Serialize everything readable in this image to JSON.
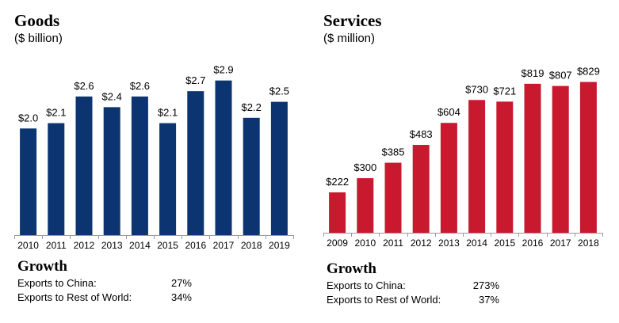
{
  "chart_data": [
    {
      "type": "bar",
      "title": "Goods",
      "subtitle": "($ billion)",
      "categories": [
        "2010",
        "2011",
        "2012",
        "2013",
        "2014",
        "2015",
        "2016",
        "2017",
        "2018",
        "2019"
      ],
      "values": [
        2.0,
        2.1,
        2.6,
        2.4,
        2.6,
        2.1,
        2.7,
        2.9,
        2.2,
        2.5
      ],
      "data_labels": [
        "$2.0",
        "$2.1",
        "$2.6",
        "$2.4",
        "$2.6",
        "$2.1",
        "$2.7",
        "$2.9",
        "$2.2",
        "$2.5"
      ],
      "color": "#0c3470",
      "ylim": [
        0,
        3.4
      ],
      "grid": false,
      "growth": {
        "title": "Growth",
        "rows": [
          {
            "label": "Exports to China:",
            "value": "27%"
          },
          {
            "label": "Exports to Rest of World:",
            "value": "34%"
          }
        ]
      }
    },
    {
      "type": "bar",
      "title": "Services",
      "subtitle": "($ million)",
      "categories": [
        "2009",
        "2010",
        "2011",
        "2012",
        "2013",
        "2014",
        "2015",
        "2016",
        "2017",
        "2018"
      ],
      "values": [
        222,
        300,
        385,
        483,
        604,
        730,
        721,
        819,
        807,
        829
      ],
      "data_labels": [
        "$222",
        "$300",
        "$385",
        "$483",
        "$604",
        "$730",
        "$721",
        "$819",
        "$807",
        "$829"
      ],
      "color": "#c8192e",
      "ylim": [
        0,
        975
      ],
      "grid": false,
      "growth": {
        "title": "Growth",
        "rows": [
          {
            "label": "Exports to China:",
            "value": "273%"
          },
          {
            "label": "Exports to Rest of World:",
            "value": "37%"
          }
        ]
      }
    }
  ]
}
